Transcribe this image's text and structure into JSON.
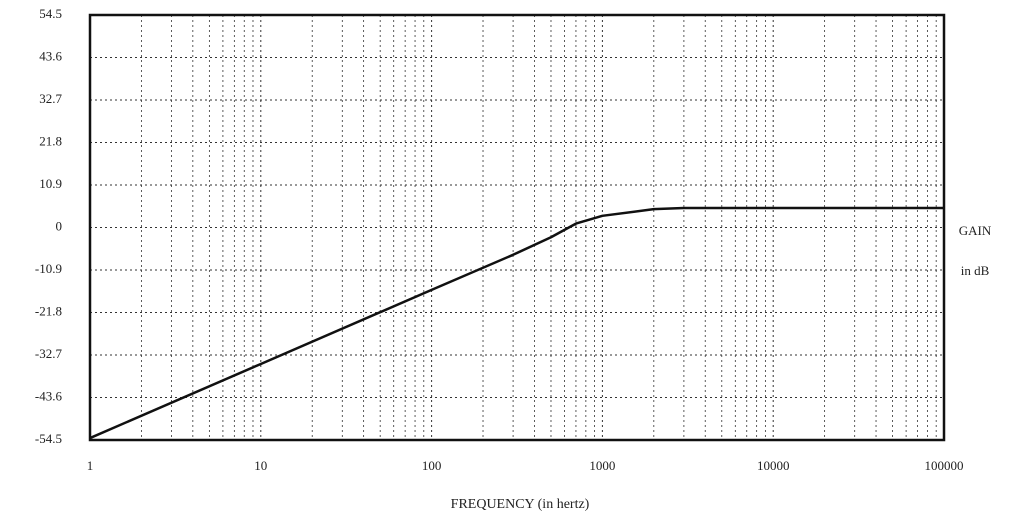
{
  "chart_data": {
    "type": "line",
    "x_label": "FREQUENCY (in hertz)",
    "annotations": [
      "GAIN",
      "in dB"
    ],
    "x": [
      1,
      10,
      100,
      300,
      500,
      700,
      1000,
      2000,
      3000,
      10000,
      100000
    ],
    "series": [
      {
        "color": "#111111",
        "values": [
          -54,
          -35,
          -16,
          -7,
          -2.5,
          1,
          3,
          4.7,
          5,
          5,
          5
        ]
      }
    ],
    "xlim": [
      1,
      100000
    ],
    "xticks": [
      1,
      10,
      100,
      1000,
      10000,
      100000
    ],
    "xscale": "log",
    "ylim": [
      -54.5,
      54.5
    ],
    "yticks": [
      54.5,
      43.6,
      32.7,
      21.8,
      10.9,
      0,
      -10.9,
      -21.8,
      -32.7,
      -43.6,
      -54.5
    ],
    "grid": true,
    "minor_grid": true
  }
}
